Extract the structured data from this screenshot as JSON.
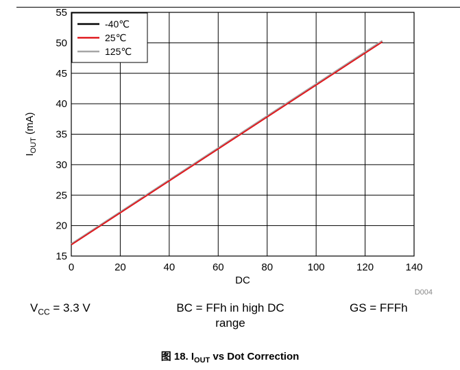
{
  "chart_data": {
    "type": "line",
    "title": "",
    "xlabel": "DC",
    "ylabel": {
      "main": "I",
      "sub": "OUT",
      "unit": "(mA)"
    },
    "xlim": [
      0,
      140
    ],
    "ylim": [
      15,
      55
    ],
    "xticks": [
      0,
      20,
      40,
      60,
      80,
      100,
      120,
      140
    ],
    "yticks": [
      15,
      20,
      25,
      30,
      35,
      40,
      45,
      50,
      55
    ],
    "grid": true,
    "legend_position": "top-left",
    "watermark": "D004",
    "series": [
      {
        "name": "-40℃",
        "color": "#000000",
        "x": [
          0,
          127
        ],
        "y": [
          16.9,
          50.2
        ]
      },
      {
        "name": "25℃",
        "color": "#e0191e",
        "x": [
          0,
          127
        ],
        "y": [
          16.85,
          50.15
        ]
      },
      {
        "name": "125℃",
        "color": "#a6a6a6",
        "x": [
          0,
          127
        ],
        "y": [
          17.0,
          50.35
        ]
      }
    ]
  },
  "conditions": {
    "vcc": {
      "main": "V",
      "sub": "CC",
      "rest": " = 3.3 V"
    },
    "bc_line1": "BC = FFh in high DC",
    "bc_line2": "range",
    "gs": "GS = FFFh"
  },
  "caption": {
    "prefix": "图 18. I",
    "sub": "OUT",
    "rest": " vs Dot Correction"
  }
}
